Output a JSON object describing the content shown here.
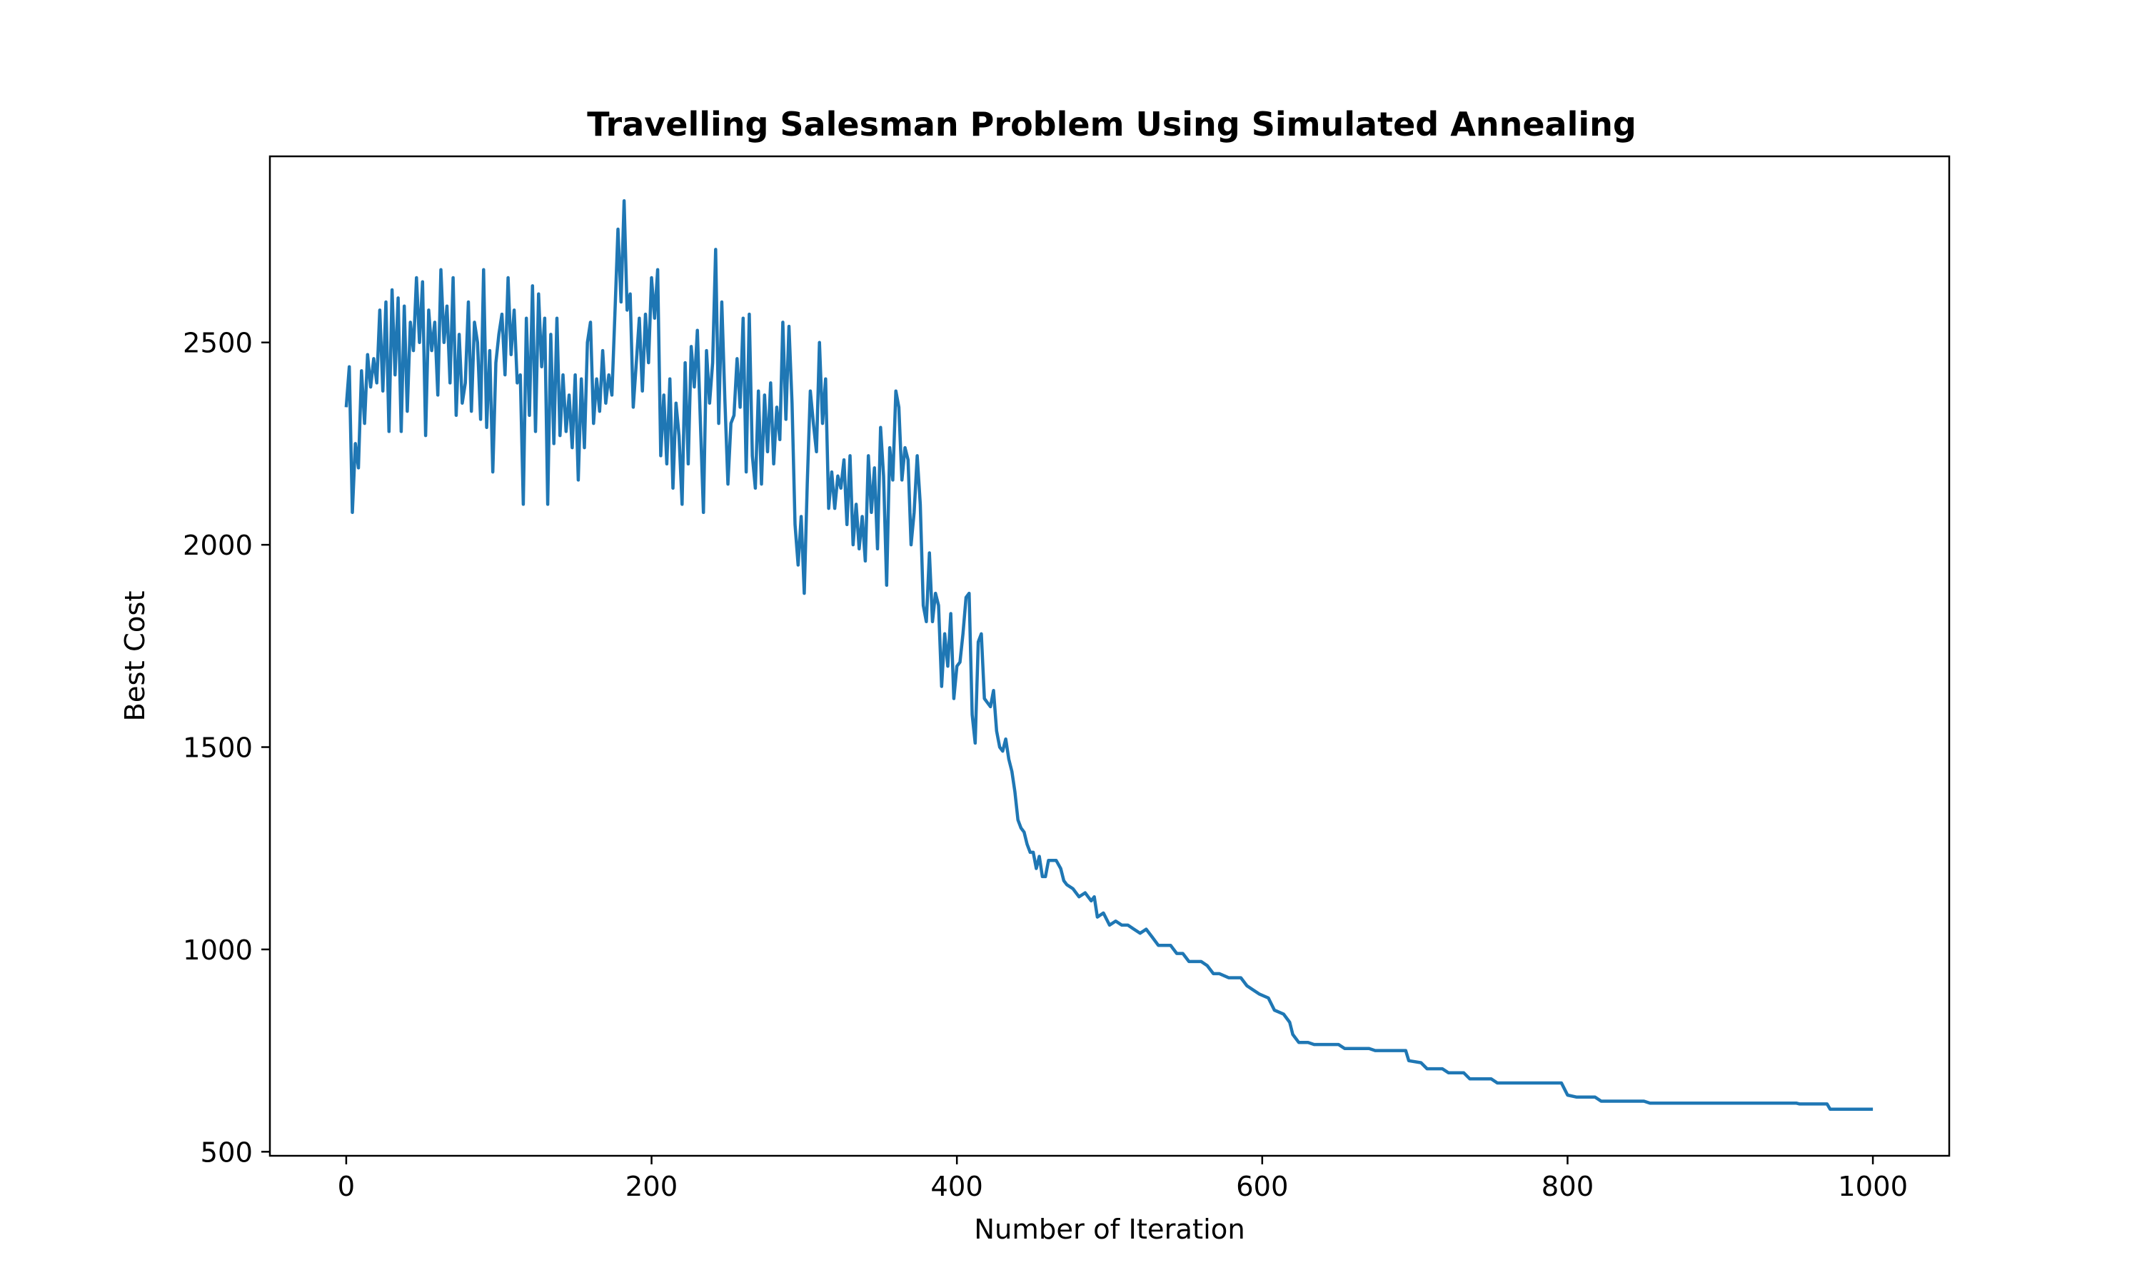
{
  "chart_data": {
    "type": "line",
    "title": "Travelling Salesman Problem Using Simulated Annealing",
    "xlabel": "Number of Iteration",
    "ylabel": "Best Cost",
    "xlim": [
      -50,
      1050
    ],
    "ylim": [
      490,
      2960
    ],
    "xticks": [
      0,
      200,
      400,
      600,
      800,
      1000
    ],
    "yticks": [
      500,
      1000,
      1500,
      2000,
      2500
    ],
    "grid": false,
    "line_color": "#1f77b4",
    "series": [
      {
        "name": "",
        "points": [
          [
            0,
            2340
          ],
          [
            2,
            2440
          ],
          [
            4,
            2080
          ],
          [
            6,
            2250
          ],
          [
            8,
            2190
          ],
          [
            10,
            2430
          ],
          [
            12,
            2300
          ],
          [
            14,
            2470
          ],
          [
            16,
            2390
          ],
          [
            18,
            2460
          ],
          [
            20,
            2400
          ],
          [
            22,
            2580
          ],
          [
            24,
            2380
          ],
          [
            26,
            2600
          ],
          [
            28,
            2280
          ],
          [
            30,
            2630
          ],
          [
            32,
            2420
          ],
          [
            34,
            2610
          ],
          [
            36,
            2280
          ],
          [
            38,
            2590
          ],
          [
            40,
            2330
          ],
          [
            42,
            2550
          ],
          [
            44,
            2480
          ],
          [
            46,
            2660
          ],
          [
            48,
            2500
          ],
          [
            50,
            2650
          ],
          [
            52,
            2270
          ],
          [
            54,
            2580
          ],
          [
            56,
            2480
          ],
          [
            58,
            2550
          ],
          [
            60,
            2370
          ],
          [
            62,
            2680
          ],
          [
            64,
            2500
          ],
          [
            66,
            2590
          ],
          [
            68,
            2400
          ],
          [
            70,
            2660
          ],
          [
            72,
            2320
          ],
          [
            74,
            2520
          ],
          [
            76,
            2350
          ],
          [
            78,
            2400
          ],
          [
            80,
            2600
          ],
          [
            82,
            2330
          ],
          [
            84,
            2550
          ],
          [
            86,
            2500
          ],
          [
            88,
            2310
          ],
          [
            90,
            2680
          ],
          [
            92,
            2290
          ],
          [
            94,
            2480
          ],
          [
            96,
            2180
          ],
          [
            98,
            2450
          ],
          [
            100,
            2520
          ],
          [
            102,
            2570
          ],
          [
            104,
            2420
          ],
          [
            106,
            2660
          ],
          [
            108,
            2470
          ],
          [
            110,
            2580
          ],
          [
            112,
            2400
          ],
          [
            114,
            2420
          ],
          [
            116,
            2100
          ],
          [
            118,
            2560
          ],
          [
            120,
            2320
          ],
          [
            122,
            2640
          ],
          [
            124,
            2280
          ],
          [
            126,
            2620
          ],
          [
            128,
            2440
          ],
          [
            130,
            2560
          ],
          [
            132,
            2100
          ],
          [
            134,
            2520
          ],
          [
            136,
            2250
          ],
          [
            138,
            2560
          ],
          [
            140,
            2270
          ],
          [
            142,
            2420
          ],
          [
            144,
            2280
          ],
          [
            146,
            2370
          ],
          [
            148,
            2240
          ],
          [
            150,
            2420
          ],
          [
            152,
            2160
          ],
          [
            154,
            2410
          ],
          [
            156,
            2240
          ],
          [
            158,
            2500
          ],
          [
            160,
            2550
          ],
          [
            162,
            2300
          ],
          [
            164,
            2410
          ],
          [
            166,
            2330
          ],
          [
            168,
            2480
          ],
          [
            170,
            2350
          ],
          [
            172,
            2420
          ],
          [
            174,
            2370
          ],
          [
            176,
            2570
          ],
          [
            178,
            2780
          ],
          [
            180,
            2600
          ],
          [
            182,
            2850
          ],
          [
            184,
            2580
          ],
          [
            186,
            2620
          ],
          [
            188,
            2340
          ],
          [
            190,
            2450
          ],
          [
            192,
            2560
          ],
          [
            194,
            2380
          ],
          [
            196,
            2570
          ],
          [
            198,
            2450
          ],
          [
            200,
            2660
          ],
          [
            202,
            2560
          ],
          [
            204,
            2680
          ],
          [
            206,
            2220
          ],
          [
            208,
            2370
          ],
          [
            210,
            2200
          ],
          [
            212,
            2410
          ],
          [
            214,
            2140
          ],
          [
            216,
            2350
          ],
          [
            218,
            2270
          ],
          [
            220,
            2100
          ],
          [
            222,
            2450
          ],
          [
            224,
            2200
          ],
          [
            226,
            2490
          ],
          [
            228,
            2390
          ],
          [
            230,
            2530
          ],
          [
            232,
            2300
          ],
          [
            234,
            2080
          ],
          [
            236,
            2480
          ],
          [
            238,
            2350
          ],
          [
            240,
            2450
          ],
          [
            242,
            2730
          ],
          [
            244,
            2300
          ],
          [
            246,
            2600
          ],
          [
            248,
            2360
          ],
          [
            250,
            2150
          ],
          [
            252,
            2300
          ],
          [
            254,
            2320
          ],
          [
            256,
            2460
          ],
          [
            258,
            2340
          ],
          [
            260,
            2560
          ],
          [
            262,
            2180
          ],
          [
            264,
            2570
          ],
          [
            266,
            2220
          ],
          [
            268,
            2140
          ],
          [
            270,
            2380
          ],
          [
            272,
            2150
          ],
          [
            274,
            2370
          ],
          [
            276,
            2230
          ],
          [
            278,
            2400
          ],
          [
            280,
            2200
          ],
          [
            282,
            2340
          ],
          [
            284,
            2260
          ],
          [
            286,
            2550
          ],
          [
            288,
            2310
          ],
          [
            290,
            2540
          ],
          [
            292,
            2350
          ],
          [
            294,
            2050
          ],
          [
            296,
            1950
          ],
          [
            298,
            2070
          ],
          [
            300,
            1880
          ],
          [
            302,
            2150
          ],
          [
            304,
            2380
          ],
          [
            306,
            2300
          ],
          [
            308,
            2230
          ],
          [
            310,
            2500
          ],
          [
            312,
            2300
          ],
          [
            314,
            2410
          ],
          [
            316,
            2090
          ],
          [
            318,
            2180
          ],
          [
            320,
            2090
          ],
          [
            322,
            2170
          ],
          [
            324,
            2140
          ],
          [
            326,
            2210
          ],
          [
            328,
            2050
          ],
          [
            330,
            2220
          ],
          [
            332,
            2000
          ],
          [
            334,
            2100
          ],
          [
            336,
            1990
          ],
          [
            338,
            2070
          ],
          [
            340,
            1960
          ],
          [
            342,
            2220
          ],
          [
            344,
            2080
          ],
          [
            346,
            2190
          ],
          [
            348,
            1990
          ],
          [
            350,
            2290
          ],
          [
            352,
            2170
          ],
          [
            354,
            1900
          ],
          [
            356,
            2240
          ],
          [
            358,
            2160
          ],
          [
            360,
            2380
          ],
          [
            362,
            2340
          ],
          [
            364,
            2160
          ],
          [
            366,
            2240
          ],
          [
            368,
            2210
          ],
          [
            370,
            2000
          ],
          [
            372,
            2080
          ],
          [
            374,
            2220
          ],
          [
            376,
            2100
          ],
          [
            378,
            1850
          ],
          [
            380,
            1810
          ],
          [
            382,
            1980
          ],
          [
            384,
            1810
          ],
          [
            386,
            1880
          ],
          [
            388,
            1850
          ],
          [
            390,
            1650
          ],
          [
            392,
            1780
          ],
          [
            394,
            1700
          ],
          [
            396,
            1830
          ],
          [
            398,
            1620
          ],
          [
            400,
            1700
          ],
          [
            402,
            1710
          ],
          [
            404,
            1780
          ],
          [
            406,
            1870
          ],
          [
            408,
            1880
          ],
          [
            410,
            1580
          ],
          [
            412,
            1510
          ],
          [
            414,
            1760
          ],
          [
            416,
            1780
          ],
          [
            418,
            1620
          ],
          [
            420,
            1610
          ],
          [
            422,
            1600
          ],
          [
            424,
            1640
          ],
          [
            426,
            1540
          ],
          [
            428,
            1500
          ],
          [
            430,
            1490
          ],
          [
            432,
            1520
          ],
          [
            434,
            1470
          ],
          [
            436,
            1440
          ],
          [
            438,
            1390
          ],
          [
            440,
            1320
          ],
          [
            442,
            1300
          ],
          [
            444,
            1290
          ],
          [
            446,
            1260
          ],
          [
            448,
            1240
          ],
          [
            450,
            1240
          ],
          [
            452,
            1200
          ],
          [
            454,
            1230
          ],
          [
            456,
            1180
          ],
          [
            458,
            1180
          ],
          [
            460,
            1220
          ],
          [
            465,
            1220
          ],
          [
            468,
            1200
          ],
          [
            470,
            1170
          ],
          [
            472,
            1160
          ],
          [
            476,
            1150
          ],
          [
            480,
            1130
          ],
          [
            484,
            1140
          ],
          [
            488,
            1120
          ],
          [
            490,
            1130
          ],
          [
            492,
            1080
          ],
          [
            496,
            1090
          ],
          [
            500,
            1060
          ],
          [
            504,
            1070
          ],
          [
            508,
            1060
          ],
          [
            512,
            1060
          ],
          [
            516,
            1050
          ],
          [
            520,
            1040
          ],
          [
            524,
            1050
          ],
          [
            528,
            1030
          ],
          [
            532,
            1010
          ],
          [
            540,
            1010
          ],
          [
            544,
            990
          ],
          [
            548,
            990
          ],
          [
            552,
            970
          ],
          [
            560,
            970
          ],
          [
            564,
            960
          ],
          [
            568,
            940
          ],
          [
            572,
            940
          ],
          [
            578,
            930
          ],
          [
            586,
            930
          ],
          [
            590,
            910
          ],
          [
            594,
            900
          ],
          [
            598,
            890
          ],
          [
            604,
            880
          ],
          [
            608,
            850
          ],
          [
            614,
            840
          ],
          [
            618,
            820
          ],
          [
            620,
            790
          ],
          [
            624,
            770
          ],
          [
            630,
            770
          ],
          [
            634,
            765
          ],
          [
            650,
            765
          ],
          [
            654,
            755
          ],
          [
            670,
            755
          ],
          [
            674,
            750
          ],
          [
            694,
            750
          ],
          [
            696,
            725
          ],
          [
            704,
            720
          ],
          [
            708,
            705
          ],
          [
            718,
            705
          ],
          [
            722,
            695
          ],
          [
            732,
            695
          ],
          [
            736,
            680
          ],
          [
            750,
            680
          ],
          [
            754,
            670
          ],
          [
            796,
            670
          ],
          [
            800,
            640
          ],
          [
            806,
            635
          ],
          [
            818,
            635
          ],
          [
            822,
            625
          ],
          [
            850,
            625
          ],
          [
            854,
            620
          ],
          [
            950,
            620
          ],
          [
            952,
            618
          ],
          [
            970,
            618
          ],
          [
            972,
            605
          ],
          [
            1000,
            605
          ]
        ]
      }
    ]
  }
}
